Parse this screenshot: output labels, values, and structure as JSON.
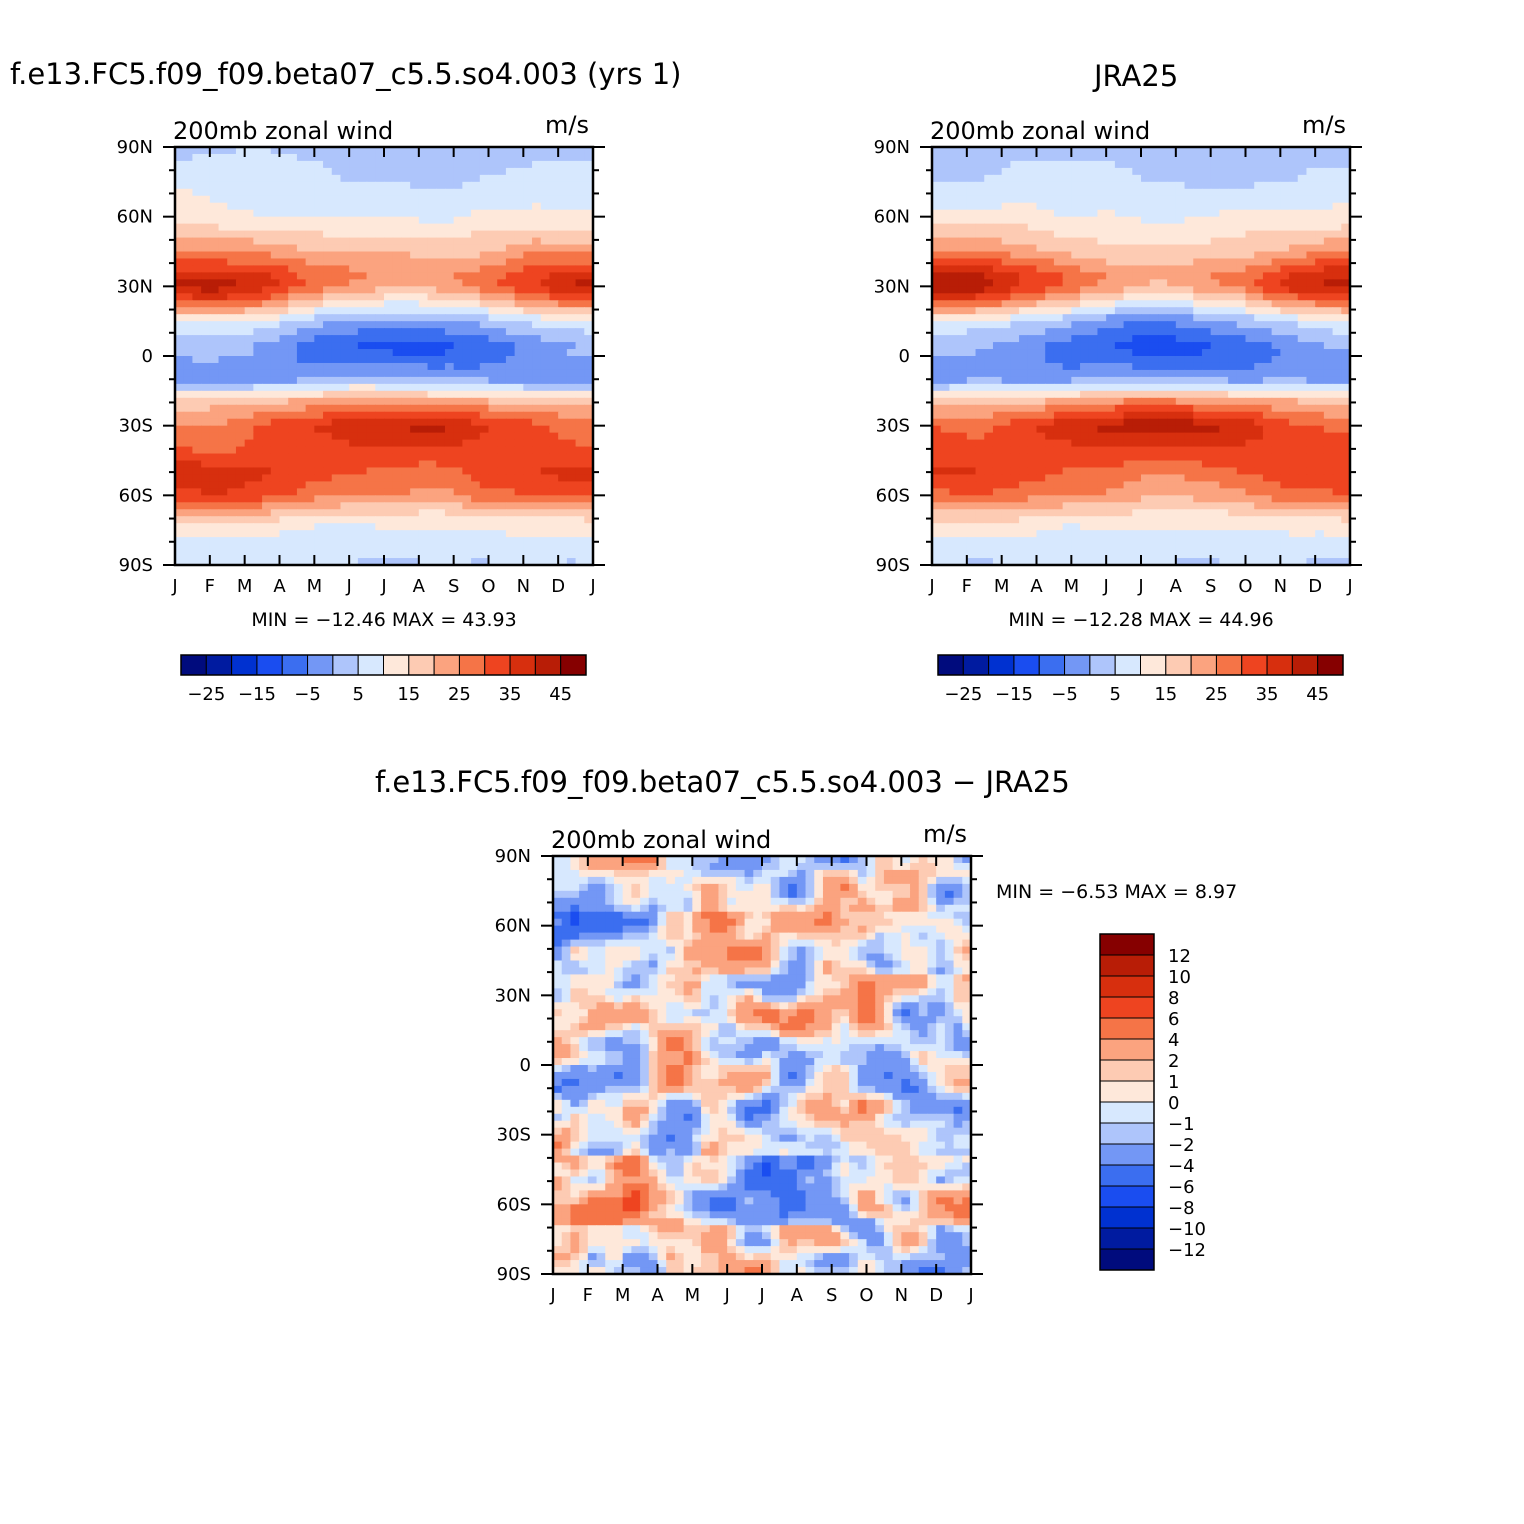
{
  "colors": {
    "model_levels": [
      "#000b7d",
      "#001ba0",
      "#0031d0",
      "#1a4df0",
      "#3b6ef0",
      "#7397f5",
      "#aec5fb",
      "#d7e8fe",
      "#fee8da",
      "#fdcbb3",
      "#fba37f",
      "#f57447",
      "#ee4420",
      "#d72f0e",
      "#b81d06",
      "#860000"
    ],
    "diff_levels": [
      "#000b7d",
      "#001ba0",
      "#0031d0",
      "#1a4df0",
      "#3b6ef0",
      "#7397f5",
      "#aec5fb",
      "#d7e8fe",
      "#fee8da",
      "#fdcbb3",
      "#fba37f",
      "#f57447",
      "#ee4420",
      "#d72f0e",
      "#b81d06",
      "#860000"
    ]
  },
  "chart_data": [
    {
      "type": "heatmap",
      "id": "model",
      "title": "f.e13.FC5.f09_f09.beta07_c5.5.so4.003 (yrs 1)",
      "subtitle_left": "200mb zonal wind",
      "subtitle_right": "m/s",
      "x_ticks": [
        "J",
        "F",
        "M",
        "A",
        "M",
        "J",
        "J",
        "A",
        "S",
        "O",
        "N",
        "D",
        "J"
      ],
      "y_ticks": [
        "90N",
        "60N",
        "30N",
        "0",
        "30S",
        "60S",
        "90S"
      ],
      "ylim": [
        -90,
        90
      ],
      "min_label": "MIN = −12.46 MAX =   43.93",
      "min": -12.46,
      "max": 43.93,
      "colorbar_levels": [
        -30,
        -25,
        -20,
        -15,
        -10,
        -5,
        0,
        5,
        10,
        15,
        20,
        25,
        30,
        35,
        40,
        45
      ],
      "colorbar_tick_labels": [
        "−25",
        "−15",
        "−5",
        "5",
        "15",
        "25",
        "35",
        "45"
      ],
      "profile": {
        "lat": [
          90,
          75,
          60,
          45,
          35,
          30,
          25,
          15,
          5,
          0,
          -10,
          -20,
          -30,
          -40,
          -50,
          -60,
          -70,
          -80,
          -90
        ],
        "djf": [
          4,
          8,
          12,
          25,
          38,
          42,
          34,
          10,
          2,
          2,
          -4,
          18,
          26,
          30,
          38,
          34,
          16,
          8,
          6
        ],
        "jja": [
          2,
          4,
          10,
          18,
          24,
          22,
          14,
          -2,
          -12,
          -11,
          2,
          24,
          42,
          34,
          28,
          24,
          12,
          6,
          5
        ]
      }
    },
    {
      "type": "heatmap",
      "id": "obs",
      "title": "JRA25",
      "subtitle_left": "200mb zonal wind",
      "subtitle_right": "m/s",
      "x_ticks": [
        "J",
        "F",
        "M",
        "A",
        "M",
        "J",
        "J",
        "A",
        "S",
        "O",
        "N",
        "D",
        "J"
      ],
      "y_ticks": [
        "90N",
        "60N",
        "30N",
        "0",
        "30S",
        "60S",
        "90S"
      ],
      "ylim": [
        -90,
        90
      ],
      "min_label": "MIN = −12.28 MAX =   44.96",
      "min": -12.28,
      "max": 44.96,
      "colorbar_levels": [
        -30,
        -25,
        -20,
        -15,
        -10,
        -5,
        0,
        5,
        10,
        15,
        20,
        25,
        30,
        35,
        40,
        45
      ],
      "colorbar_tick_labels": [
        "−25",
        "−15",
        "−5",
        "5",
        "15",
        "25",
        "35",
        "45"
      ],
      "profile": {
        "lat": [
          90,
          75,
          60,
          45,
          35,
          30,
          25,
          15,
          5,
          0,
          -10,
          -20,
          -30,
          -40,
          -50,
          -60,
          -70,
          -80,
          -90
        ],
        "djf": [
          3,
          6,
          12,
          24,
          40,
          43,
          34,
          10,
          1,
          -1,
          -2,
          18,
          28,
          32,
          36,
          30,
          16,
          8,
          5
        ],
        "jja": [
          3,
          5,
          10,
          16,
          22,
          20,
          12,
          -4,
          -12,
          -10,
          0,
          26,
          44,
          34,
          26,
          22,
          12,
          6,
          5
        ]
      }
    },
    {
      "type": "heatmap",
      "id": "diff",
      "title": "f.e13.FC5.f09_f09.beta07_c5.5.so4.003 − JRA25",
      "subtitle_left": "200mb zonal wind",
      "subtitle_right": "m/s",
      "x_ticks": [
        "J",
        "F",
        "M",
        "A",
        "M",
        "J",
        "J",
        "A",
        "S",
        "O",
        "N",
        "D",
        "J"
      ],
      "y_ticks": [
        "90N",
        "60N",
        "30N",
        "0",
        "30S",
        "60S",
        "90S"
      ],
      "ylim": [
        -90,
        90
      ],
      "min_label": "MIN =   −6.53 MAX =    8.97",
      "min": -6.53,
      "max": 8.97,
      "colorbar_levels": [
        -14,
        -12,
        -10,
        -8,
        -6,
        -4,
        -2,
        -1,
        0,
        1,
        2,
        4,
        6,
        8,
        10,
        12
      ],
      "colorbar_tick_labels": [
        "12",
        "10",
        "8",
        "6",
        "4",
        "2",
        "1",
        "0",
        "−1",
        "−2",
        "−4",
        "−6",
        "−8",
        "−10",
        "−12"
      ]
    }
  ]
}
